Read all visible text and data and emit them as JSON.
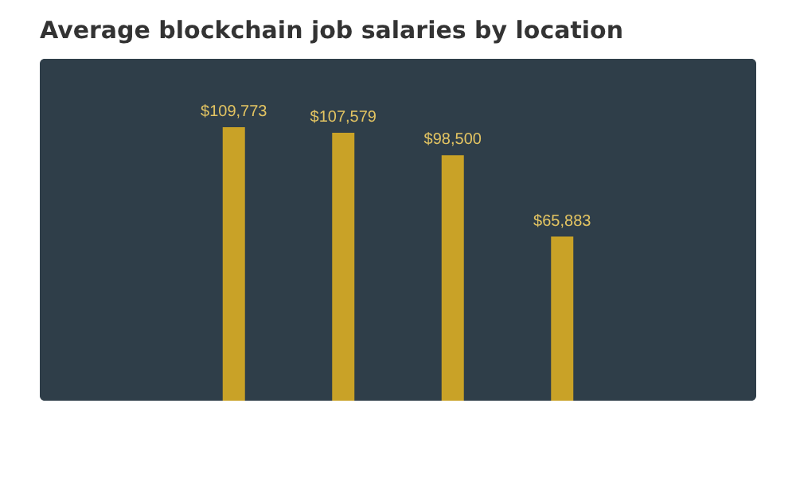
{
  "chart_data": {
    "type": "bar",
    "title": "Average blockchain job salaries by location",
    "categories": [
      null,
      null,
      null,
      null
    ],
    "values": [
      109773,
      107579,
      98500,
      65883
    ],
    "value_labels": [
      "$109,773",
      "$107,579",
      "$98,500",
      "$65,883"
    ],
    "color": "#c9a227"
  }
}
